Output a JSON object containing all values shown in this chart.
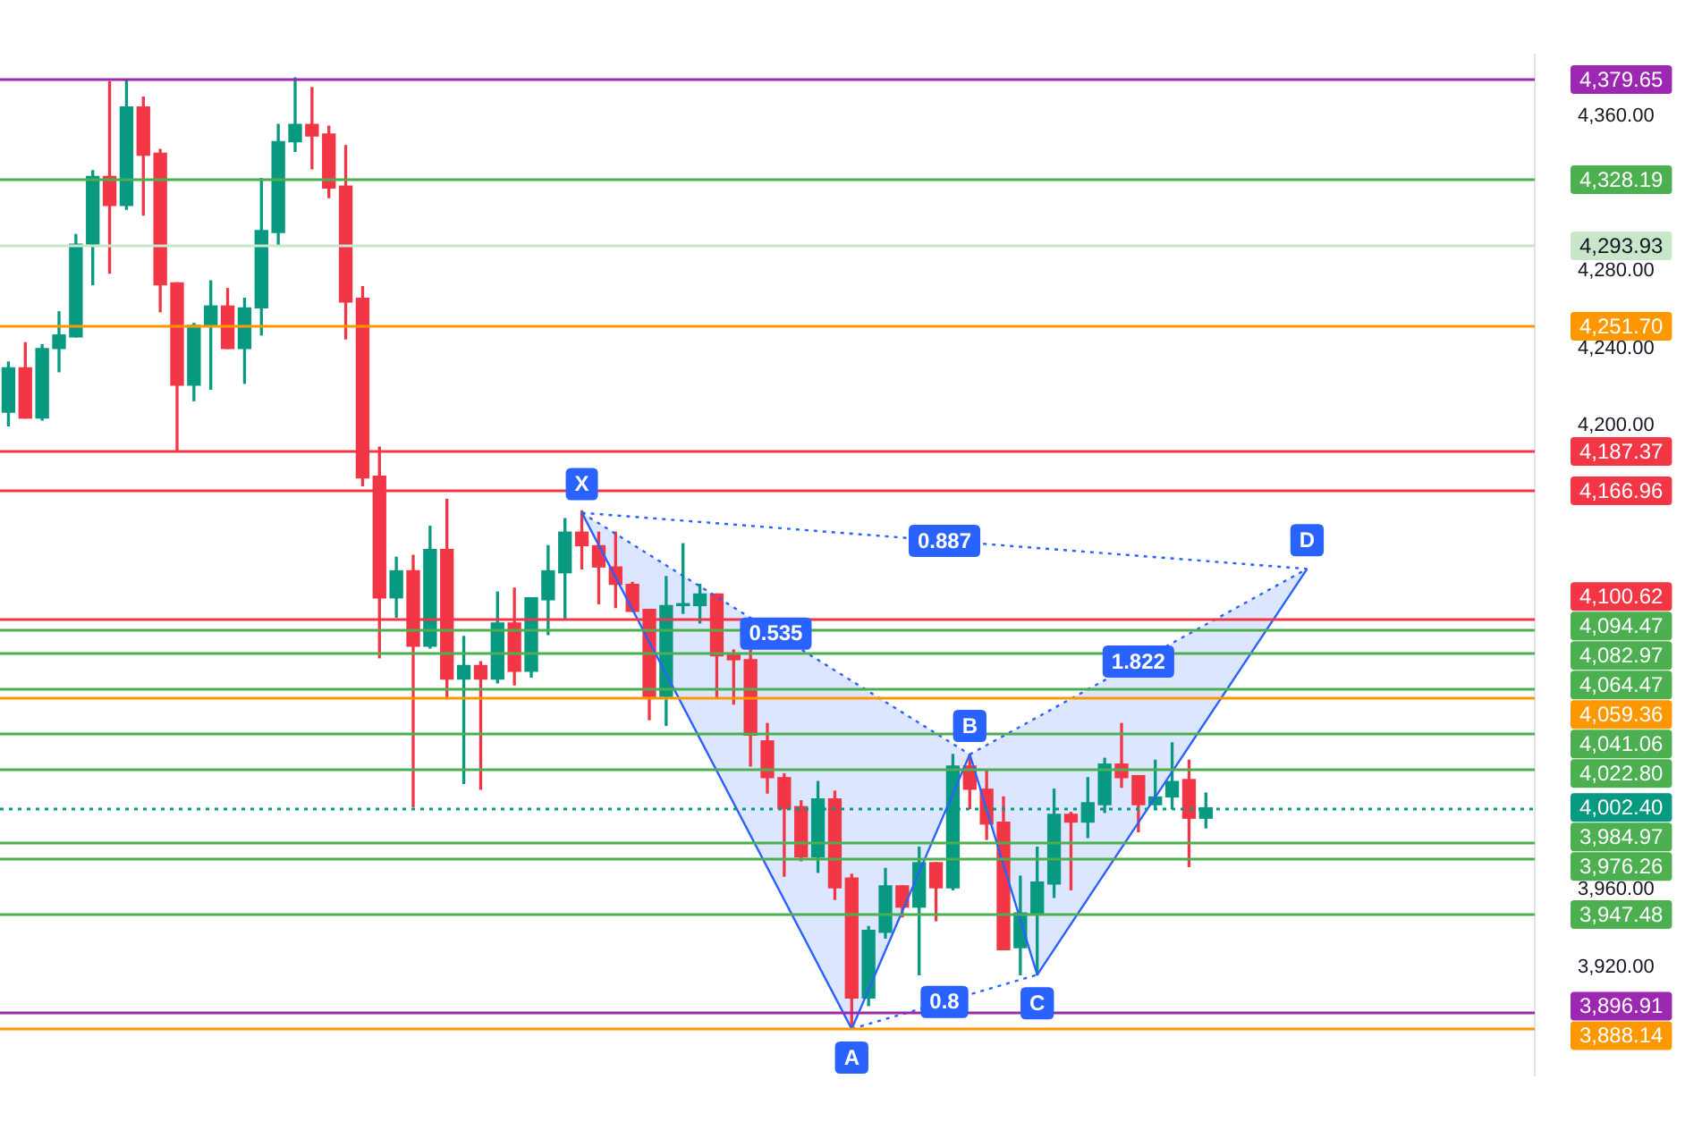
{
  "chart_data": {
    "type": "candlestick",
    "categories": [
      null,
      null,
      null,
      null,
      null,
      null,
      null,
      null,
      null,
      null,
      null,
      null,
      null,
      null,
      null,
      null,
      null,
      null,
      null,
      null,
      null,
      null,
      null,
      null,
      null,
      null,
      null,
      null,
      null,
      null,
      null,
      null,
      null,
      null,
      null,
      null,
      null,
      null,
      null,
      null,
      null,
      null,
      null,
      null,
      null,
      null,
      null,
      null,
      null,
      null,
      null,
      null,
      null,
      null,
      null,
      null,
      null,
      null,
      null,
      null,
      null,
      null,
      null,
      null,
      null,
      null,
      null,
      null,
      null,
      null,
      null,
      null,
      null,
      null,
      null,
      null,
      null,
      null,
      null,
      null,
      null,
      null,
      null,
      null,
      null,
      null,
      null,
      null,
      null,
      null,
      null
    ],
    "ohlc": [
      [
        4207,
        4233,
        4200,
        4230
      ],
      [
        4230,
        4243,
        4204,
        4204
      ],
      [
        4204,
        4242,
        4203,
        4240
      ],
      [
        4240,
        4259,
        4228,
        4247
      ],
      [
        4246,
        4299,
        4246,
        4294
      ],
      [
        4294,
        4332,
        4273,
        4329
      ],
      [
        4329,
        4378,
        4279,
        4314
      ],
      [
        4314,
        4379,
        4312,
        4365
      ],
      [
        4365,
        4370,
        4309,
        4340
      ],
      [
        4341,
        4343,
        4259,
        4273
      ],
      [
        4274,
        4274,
        4187,
        4221
      ],
      [
        4221,
        4253,
        4213,
        4252
      ],
      [
        4252,
        4275,
        4219,
        4262
      ],
      [
        4262,
        4271,
        4240,
        4240
      ],
      [
        4240,
        4266,
        4222,
        4261
      ],
      [
        4261,
        4328,
        4247,
        4301
      ],
      [
        4300,
        4356,
        4293,
        4347
      ],
      [
        4347,
        4380,
        4342,
        4356
      ],
      [
        4356,
        4375,
        4333,
        4350
      ],
      [
        4351,
        4355,
        4318,
        4323
      ],
      [
        4324,
        4345,
        4245,
        4264
      ],
      [
        4266,
        4272,
        4169,
        4173
      ],
      [
        4174,
        4189,
        4080,
        4111
      ],
      [
        4111,
        4132,
        4101,
        4125
      ],
      [
        4125,
        4133,
        4003,
        4086
      ],
      [
        4086,
        4148,
        4085,
        4136
      ],
      [
        4136,
        4162,
        4059,
        4069
      ],
      [
        4069,
        4091,
        4015,
        4076
      ],
      [
        4076,
        4078,
        4012,
        4069
      ],
      [
        4069,
        4114,
        4067,
        4098
      ],
      [
        4098,
        4116,
        4066,
        4073
      ],
      [
        4073,
        4111,
        4070,
        4111
      ],
      [
        4110,
        4138,
        4092,
        4125
      ],
      [
        4124,
        4152,
        4100,
        4145
      ],
      [
        4145,
        4156,
        4126,
        4138
      ],
      [
        4138,
        4145,
        4108,
        4127
      ],
      [
        4127,
        4145,
        4106,
        4118
      ],
      [
        4118,
        4119,
        4104,
        4104
      ],
      [
        4105,
        4105,
        4048,
        4060
      ],
      [
        4060,
        4122,
        4045,
        4107
      ],
      [
        4107,
        4139,
        4103,
        4108
      ],
      [
        4107,
        4118,
        4098,
        4113
      ],
      [
        4113,
        4113,
        4059,
        4081
      ],
      [
        4082,
        4084,
        4056,
        4079
      ],
      [
        4079,
        4084,
        4024,
        4040
      ],
      [
        4037,
        4046,
        4010,
        4018
      ],
      [
        4018,
        4020,
        3967,
        4002
      ],
      [
        4003,
        4006,
        3975,
        3977
      ],
      [
        3977,
        4016,
        3969,
        4007
      ],
      [
        4007,
        4011,
        3955,
        3961
      ],
      [
        3966,
        3968,
        3888,
        3904
      ],
      [
        3904,
        3941,
        3900,
        3939
      ],
      [
        3938,
        3971,
        3935,
        3962
      ],
      [
        3962,
        3962,
        3946,
        3951
      ],
      [
        3951,
        3982,
        3916,
        3974
      ],
      [
        3974,
        3974,
        3944,
        3961
      ],
      [
        3961,
        4030,
        3960,
        4024
      ],
      [
        4024,
        4030,
        4002,
        4012
      ],
      [
        4012,
        4022,
        3986,
        3994
      ],
      [
        3995,
        4008,
        3929,
        3929
      ],
      [
        3930,
        3967,
        3916,
        3948
      ],
      [
        3947,
        3982,
        3916,
        3964
      ],
      [
        3963,
        4012,
        3956,
        3999
      ],
      [
        3999,
        4000,
        3960,
        3995
      ],
      [
        3995,
        4018,
        3987,
        4005
      ],
      [
        4004,
        4028,
        4000,
        4025
      ],
      [
        4025,
        4046,
        4013,
        4018
      ],
      [
        4019,
        4019,
        3990,
        4004
      ],
      [
        4004,
        4027,
        4002,
        4008
      ],
      [
        4008,
        4036,
        4002,
        4016
      ],
      [
        4017,
        4027,
        3972,
        3997
      ],
      [
        3997,
        4010,
        3992,
        4002.4
      ],
      null,
      null,
      null,
      null,
      null,
      null,
      null,
      null,
      null,
      null,
      null,
      null,
      null,
      null,
      null,
      null,
      null,
      null,
      null
    ],
    "colors": [
      "#089981",
      "#f23645",
      "#089981",
      "#089981",
      "#089981",
      "#089981",
      "#f23645",
      "#089981",
      "#f23645",
      "#f23645",
      "#f23645",
      "#089981",
      "#089981",
      "#f23645",
      "#089981",
      "#089981",
      "#089981",
      "#089981",
      "#f23645",
      "#f23645",
      "#f23645",
      "#f23645",
      "#f23645",
      "#089981",
      "#f23645",
      "#089981",
      "#f23645",
      "#089981",
      "#f23645",
      "#089981",
      "#f23645",
      "#089981",
      "#089981",
      "#089981",
      "#f23645",
      "#f23645",
      "#f23645",
      "#f23645",
      "#f23645",
      "#089981",
      "#089981",
      "#089981",
      "#f23645",
      "#f23645",
      "#f23645",
      "#f23645",
      "#f23645",
      "#f23645",
      "#089981",
      "#f23645",
      "#f23645",
      "#089981",
      "#089981",
      "#f23645",
      "#089981",
      "#f23645",
      "#089981",
      "#f23645",
      "#f23645",
      "#f23645",
      "#089981",
      "#089981",
      "#089981",
      "#f23645",
      "#089981",
      "#089981",
      "#f23645",
      "#f23645",
      "#089981",
      "#089981",
      "#f23645",
      "#089981",
      null,
      null,
      null,
      null,
      null,
      null,
      null,
      null,
      null,
      null,
      null,
      null,
      null,
      null,
      null,
      null,
      null,
      null,
      null
    ],
    "series": [
      {
        "type": "line",
        "color": "#2962ff",
        "line_style": "solid",
        "values": [
          null,
          null,
          null,
          null,
          null,
          null,
          null,
          null,
          null,
          null,
          null,
          null,
          null,
          null,
          null,
          null,
          null,
          null,
          null,
          null,
          null,
          null,
          null,
          null,
          null,
          null,
          null,
          null,
          null,
          null,
          null,
          null,
          null,
          null,
          4155,
          null,
          null,
          null,
          null,
          null,
          null,
          null,
          null,
          null,
          null,
          null,
          null,
          null,
          null,
          null,
          3888,
          null,
          null,
          null,
          null,
          null,
          null,
          4030,
          null,
          null,
          null,
          3916,
          null,
          null,
          null,
          null,
          null,
          null,
          null,
          null,
          null,
          null,
          null,
          null,
          null,
          null,
          null,
          4126,
          null,
          null,
          null,
          null,
          null,
          null,
          null,
          null,
          null,
          null,
          null,
          null,
          null
        ]
      },
      {
        "type": "line",
        "color": "#2962ff",
        "line_style": "dotted",
        "values": [
          null,
          null,
          null,
          null,
          null,
          null,
          null,
          null,
          null,
          null,
          null,
          null,
          null,
          null,
          null,
          null,
          null,
          null,
          null,
          null,
          null,
          null,
          null,
          null,
          null,
          null,
          null,
          null,
          null,
          null,
          null,
          null,
          null,
          null,
          4155,
          null,
          null,
          null,
          null,
          null,
          null,
          null,
          null,
          null,
          null,
          null,
          null,
          null,
          null,
          null,
          null,
          null,
          null,
          null,
          null,
          null,
          null,
          4030,
          null,
          null,
          null,
          null,
          null,
          null,
          null,
          null,
          null,
          null,
          null,
          null,
          null,
          null,
          null,
          null,
          null,
          null,
          null,
          null,
          null,
          null,
          null,
          null,
          null,
          null,
          null,
          null,
          null,
          null,
          null,
          null,
          null
        ]
      },
      {
        "type": "line",
        "color": "#2962ff",
        "line_style": "dotted",
        "values": [
          null,
          null,
          null,
          null,
          null,
          null,
          null,
          null,
          null,
          null,
          null,
          null,
          null,
          null,
          null,
          null,
          null,
          null,
          null,
          null,
          null,
          null,
          null,
          null,
          null,
          null,
          null,
          null,
          null,
          null,
          null,
          null,
          null,
          null,
          null,
          null,
          null,
          null,
          null,
          null,
          null,
          null,
          null,
          null,
          null,
          null,
          null,
          null,
          null,
          null,
          3888,
          null,
          null,
          null,
          null,
          null,
          null,
          null,
          null,
          null,
          null,
          3916,
          null,
          null,
          null,
          null,
          null,
          null,
          null,
          null,
          null,
          null,
          null,
          null,
          null,
          null,
          null,
          null,
          null,
          null,
          null,
          null,
          null,
          null,
          null,
          null,
          null,
          null,
          null,
          null,
          null
        ]
      },
      {
        "type": "line",
        "color": "#2962ff",
        "line_style": "dotted",
        "values": [
          null,
          null,
          null,
          null,
          null,
          null,
          null,
          null,
          null,
          null,
          null,
          null,
          null,
          null,
          null,
          null,
          null,
          null,
          null,
          null,
          null,
          null,
          null,
          null,
          null,
          null,
          null,
          null,
          null,
          null,
          null,
          null,
          null,
          null,
          null,
          null,
          null,
          null,
          null,
          null,
          null,
          null,
          null,
          null,
          null,
          null,
          null,
          null,
          null,
          null,
          null,
          null,
          null,
          null,
          null,
          null,
          null,
          4030,
          null,
          null,
          null,
          null,
          null,
          null,
          null,
          null,
          null,
          null,
          null,
          null,
          null,
          null,
          null,
          null,
          null,
          null,
          null,
          4126,
          null,
          null,
          null,
          null,
          null,
          null,
          null,
          null,
          null,
          null,
          null,
          null,
          null
        ]
      },
      {
        "type": "line",
        "color": "#2962ff",
        "line_style": "dotted",
        "values": [
          null,
          null,
          null,
          null,
          null,
          null,
          null,
          null,
          null,
          null,
          null,
          null,
          null,
          null,
          null,
          null,
          null,
          null,
          null,
          null,
          null,
          null,
          null,
          null,
          null,
          null,
          null,
          null,
          null,
          null,
          null,
          null,
          null,
          null,
          4155,
          null,
          null,
          null,
          null,
          null,
          null,
          null,
          null,
          null,
          null,
          null,
          null,
          null,
          null,
          null,
          null,
          null,
          null,
          null,
          null,
          null,
          null,
          null,
          null,
          null,
          null,
          null,
          null,
          null,
          null,
          null,
          null,
          null,
          null,
          null,
          null,
          null,
          null,
          null,
          null,
          null,
          null,
          4126,
          null,
          null,
          null,
          null,
          null,
          null,
          null,
          null,
          null,
          null,
          null,
          null,
          null
        ]
      }
    ],
    "annotations": [
      "X",
      "A",
      "B",
      "C",
      "D",
      "0.535",
      "0.8",
      "1.822",
      "0.887"
    ],
    "ref_lines": [
      {
        "axis": "y",
        "value": 4379.65,
        "label": "4,379.65",
        "color": "#9c27b0"
      },
      {
        "axis": "y",
        "value": 4328.19,
        "label": "4,328.19",
        "color": "#4caf50"
      },
      {
        "axis": "y",
        "value": 4293.93,
        "label": "4,293.93",
        "color": "#c8e6c9"
      },
      {
        "axis": "y",
        "value": 4251.7,
        "label": "4,251.70",
        "color": "#ff9800"
      },
      {
        "axis": "y",
        "value": 4187.37,
        "label": "4,187.37",
        "color": "#f23645"
      },
      {
        "axis": "y",
        "value": 4166.96,
        "label": "4,166.96",
        "color": "#f23645"
      },
      {
        "axis": "y",
        "value": 4100.62,
        "label": "4,100.62",
        "color": "#f23645"
      },
      {
        "axis": "y",
        "value": 4094.47,
        "label": "4,094.47",
        "color": "#4caf50"
      },
      {
        "axis": "y",
        "value": 4082.97,
        "label": "4,082.97",
        "color": "#4caf50"
      },
      {
        "axis": "y",
        "value": 4064.47,
        "label": "4,064.47",
        "color": "#4caf50"
      },
      {
        "axis": "y",
        "value": 4059.36,
        "label": "4,059.36",
        "color": "#ff9800"
      },
      {
        "axis": "y",
        "value": 4041.06,
        "label": "4,041.06",
        "color": "#4caf50"
      },
      {
        "axis": "y",
        "value": 4022.8,
        "label": "4,022.80",
        "color": "#4caf50"
      },
      {
        "axis": "y",
        "value": 4002.4,
        "label": "4,002.40",
        "color": "#089981",
        "line_style": "dotted"
      },
      {
        "axis": "y",
        "value": 3984.97,
        "label": "3,984.97",
        "color": "#4caf50"
      },
      {
        "axis": "y",
        "value": 3976.26,
        "label": "3,976.26",
        "color": "#4caf50"
      },
      {
        "axis": "y",
        "value": 3947.48,
        "label": "3,947.48",
        "color": "#4caf50"
      },
      {
        "axis": "y",
        "value": 3896.91,
        "label": "3,896.91",
        "color": "#9c27b0"
      },
      {
        "axis": "y",
        "value": 3888.14,
        "label": "3,888.14",
        "color": "#ff9800"
      }
    ],
    "ylim": [
      3864,
      4392
    ],
    "yticks": [
      {
        "value": 3920,
        "label": "3,920.00"
      },
      {
        "value": 3960,
        "label": "3,960.00"
      },
      {
        "value": 4200,
        "label": "4,200.00"
      },
      {
        "value": 4240,
        "label": "4,240.00"
      },
      {
        "value": 4280,
        "label": "4,280.00"
      },
      {
        "value": 4360,
        "label": "4,360.00"
      }
    ],
    "grid": false,
    "legend": false,
    "tick_labels": "y"
  }
}
